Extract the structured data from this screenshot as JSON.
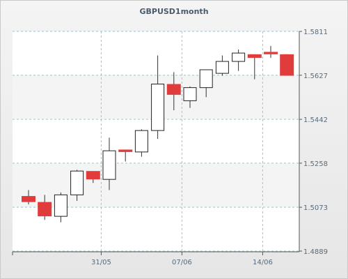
{
  "chart_data": {
    "type": "candlestick",
    "title": "GBPUSD1month",
    "xlabel": "",
    "ylabel": "",
    "ylim": [
      1.4889,
      1.5811
    ],
    "y_ticks": [
      "1.5811",
      "1.5627",
      "1.5442",
      "1.5258",
      "1.5073",
      "1.4889"
    ],
    "x_tick_labels": [
      {
        "label": "31/05",
        "index": 4.5
      },
      {
        "label": "07/06",
        "index": 9.5
      },
      {
        "label": "14/06",
        "index": 14.5
      }
    ],
    "grid": true,
    "up_color": "#ffffff",
    "down_color": "#e03c3c",
    "candles": [
      {
        "open": 1.512,
        "high": 1.5145,
        "low": 1.5085,
        "close": 1.5095
      },
      {
        "open": 1.5095,
        "high": 1.5125,
        "low": 1.502,
        "close": 1.5035
      },
      {
        "open": 1.5035,
        "high": 1.5135,
        "low": 1.501,
        "close": 1.5125
      },
      {
        "open": 1.5125,
        "high": 1.523,
        "low": 1.51,
        "close": 1.5225
      },
      {
        "open": 1.5225,
        "high": 1.5225,
        "low": 1.5175,
        "close": 1.519
      },
      {
        "open": 1.519,
        "high": 1.5365,
        "low": 1.5145,
        "close": 1.531
      },
      {
        "open": 1.5315,
        "high": 1.5315,
        "low": 1.5265,
        "close": 1.5305
      },
      {
        "open": 1.5305,
        "high": 1.54,
        "low": 1.5285,
        "close": 1.5395
      },
      {
        "open": 1.5395,
        "high": 1.571,
        "low": 1.536,
        "close": 1.559
      },
      {
        "open": 1.559,
        "high": 1.564,
        "low": 1.548,
        "close": 1.5545
      },
      {
        "open": 1.552,
        "high": 1.558,
        "low": 1.549,
        "close": 1.5575
      },
      {
        "open": 1.5575,
        "high": 1.565,
        "low": 1.5535,
        "close": 1.565
      },
      {
        "open": 1.5635,
        "high": 1.571,
        "low": 1.5625,
        "close": 1.5685
      },
      {
        "open": 1.5685,
        "high": 1.5735,
        "low": 1.5645,
        "close": 1.572
      },
      {
        "open": 1.5715,
        "high": 1.5715,
        "low": 1.561,
        "close": 1.57
      },
      {
        "open": 1.5725,
        "high": 1.575,
        "low": 1.57,
        "close": 1.5715
      },
      {
        "open": 1.5715,
        "high": 1.5715,
        "low": 1.5625,
        "close": 1.5625
      }
    ]
  }
}
